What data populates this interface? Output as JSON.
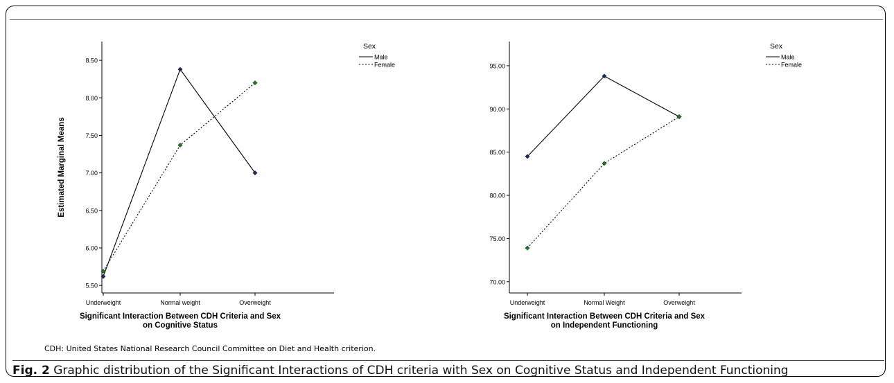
{
  "chart_data": [
    {
      "type": "line",
      "title": "",
      "xlabel_lines": [
        "Significant Interaction Between CDH Criteria and Sex",
        "on Cognitive Status"
      ],
      "ylabel": "Estimated Marginal Means",
      "categories": [
        "Underweight",
        "Normal weight",
        "Overweight"
      ],
      "yticks": [
        "5.50",
        "6.00",
        "6.50",
        "7.00",
        "7.50",
        "8.00",
        "8.50"
      ],
      "ylim": [
        5.4,
        8.75
      ],
      "legend_title": "Sex",
      "legend_position": "top-right",
      "grid": false,
      "series": [
        {
          "name": "Male",
          "style": "solid",
          "marker_color": "#1a2a6c",
          "values": [
            5.62,
            8.38,
            7.0
          ]
        },
        {
          "name": "Female",
          "style": "dotted",
          "marker_color": "#1e7a1e",
          "values": [
            5.69,
            7.37,
            8.2
          ]
        }
      ]
    },
    {
      "type": "line",
      "title": "",
      "xlabel_lines": [
        "Significant Interaction Between CDH Criteria and Sex",
        "on Independent Functioning"
      ],
      "ylabel": "Estimated Marginal Means",
      "categories": [
        "Underweight",
        "Normal Weight",
        "Overweight"
      ],
      "yticks": [
        "70.00",
        "75.00",
        "80.00",
        "85.00",
        "90.00",
        "95.00"
      ],
      "ylim": [
        68.7,
        97.8
      ],
      "legend_title": "Sex",
      "legend_position": "top-right",
      "grid": false,
      "series": [
        {
          "name": "Male",
          "style": "solid",
          "marker_color": "#1a2a6c",
          "values": [
            84.5,
            93.8,
            89.1
          ]
        },
        {
          "name": "Female",
          "style": "dotted",
          "marker_color": "#1e7a1e",
          "values": [
            73.9,
            83.7,
            89.1
          ]
        }
      ]
    }
  ],
  "footnote": "CDH: United States National Research Council Committee on Diet and Health criterion.",
  "caption": {
    "label": "Fig. 2",
    "text": " Graphic distribution of the Significant Interactions of CDH criteria with Sex on Cognitive Status and Independent Functioning"
  }
}
